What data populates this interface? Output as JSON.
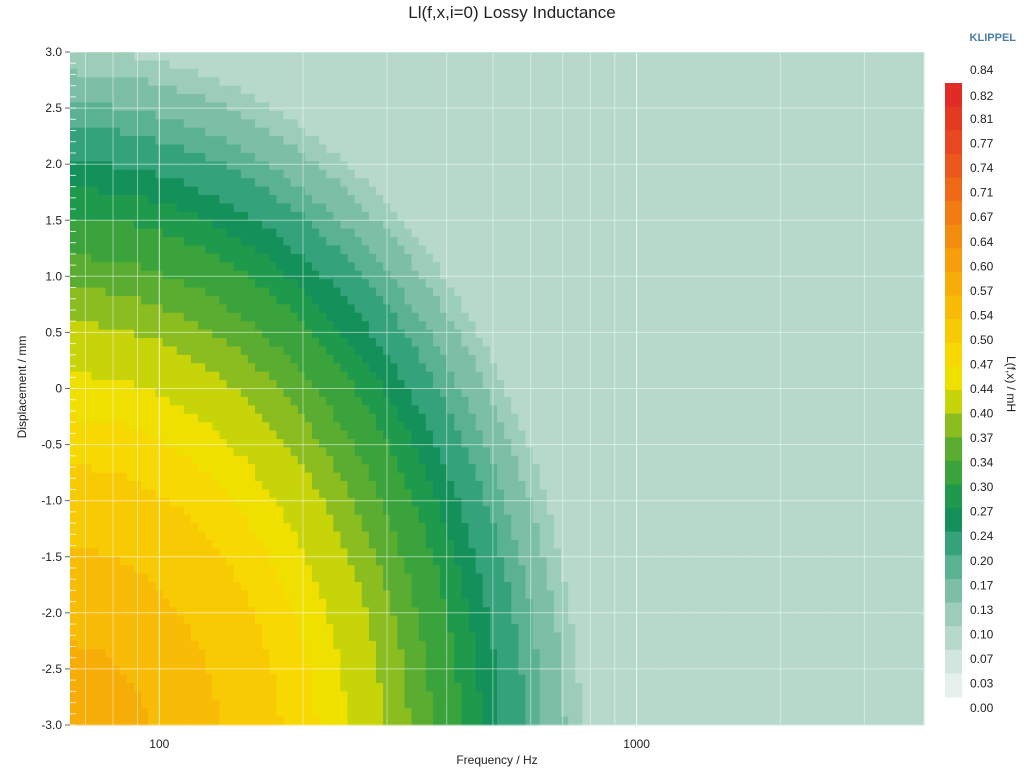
{
  "brand": "KLIPPEL",
  "chart_data": {
    "type": "heatmap",
    "title": "Ll(f,x,i=0) Lossy Inductance",
    "xlabel": "Frequency / Hz",
    "ylabel": "Displacement / mm",
    "colorbar_label": "L(f,x) / mH",
    "x_scale": "log",
    "xlim": [
      65,
      4000
    ],
    "ylim": [
      -3.0,
      3.0
    ],
    "x_ticks": [
      {
        "value": 100,
        "label": "100"
      },
      {
        "value": 1000,
        "label": "1000"
      }
    ],
    "y_ticks": [
      {
        "value": 3.0,
        "label": "3.0"
      },
      {
        "value": 2.5,
        "label": "2.5"
      },
      {
        "value": 2.0,
        "label": "2.0"
      },
      {
        "value": 1.5,
        "label": "1.5"
      },
      {
        "value": 1.0,
        "label": "1.0"
      },
      {
        "value": 0.5,
        "label": "0.5"
      },
      {
        "value": 0,
        "label": "0"
      },
      {
        "value": -0.5,
        "label": "-0.5"
      },
      {
        "value": -1.0,
        "label": "-1.0"
      },
      {
        "value": -1.5,
        "label": "-1.5"
      },
      {
        "value": -2.0,
        "label": "-2.0"
      },
      {
        "value": -2.5,
        "label": "-2.5"
      },
      {
        "value": -3.0,
        "label": "-3.0"
      }
    ],
    "colorbar_ticks": [
      "0.84",
      "0.82",
      "0.81",
      "0.77",
      "0.74",
      "0.71",
      "0.67",
      "0.64",
      "0.60",
      "0.57",
      "0.54",
      "0.50",
      "0.47",
      "0.44",
      "0.40",
      "0.37",
      "0.34",
      "0.30",
      "0.27",
      "0.24",
      "0.20",
      "0.17",
      "0.13",
      "0.10",
      "0.07",
      "0.03",
      "0.00"
    ],
    "color_levels": [
      {
        "value": 0.0,
        "color": "#e6f0ec"
      },
      {
        "value": 0.03,
        "color": "#d0e6de"
      },
      {
        "value": 0.07,
        "color": "#b6d9cb"
      },
      {
        "value": 0.1,
        "color": "#9ccdb9"
      },
      {
        "value": 0.13,
        "color": "#7dbfa6"
      },
      {
        "value": 0.17,
        "color": "#5ab292"
      },
      {
        "value": 0.2,
        "color": "#34a27a"
      },
      {
        "value": 0.24,
        "color": "#14915b"
      },
      {
        "value": 0.27,
        "color": "#1f9a4c"
      },
      {
        "value": 0.3,
        "color": "#3aa33c"
      },
      {
        "value": 0.34,
        "color": "#5aad30"
      },
      {
        "value": 0.37,
        "color": "#8bbd20"
      },
      {
        "value": 0.4,
        "color": "#c7d40a"
      },
      {
        "value": 0.44,
        "color": "#f0e000"
      },
      {
        "value": 0.47,
        "color": "#f7d802"
      },
      {
        "value": 0.5,
        "color": "#f8ca04"
      },
      {
        "value": 0.54,
        "color": "#f8bc06"
      },
      {
        "value": 0.57,
        "color": "#f7ad08"
      },
      {
        "value": 0.6,
        "color": "#f69e0b"
      },
      {
        "value": 0.64,
        "color": "#f38d0f"
      },
      {
        "value": 0.67,
        "color": "#f17c13"
      },
      {
        "value": 0.71,
        "color": "#ee6a17"
      },
      {
        "value": 0.74,
        "color": "#eb581b"
      },
      {
        "value": 0.77,
        "color": "#e8471f"
      },
      {
        "value": 0.81,
        "color": "#e53a22"
      },
      {
        "value": 0.84,
        "color": "#e22b25"
      }
    ],
    "model": {
      "f_peak_hz": 65,
      "base": 0.45,
      "x_slope": -0.08,
      "x_curv": -0.012,
      "rolloff": 0.42,
      "floor": 0.08
    },
    "grid": true,
    "colorbar_position": "right"
  }
}
